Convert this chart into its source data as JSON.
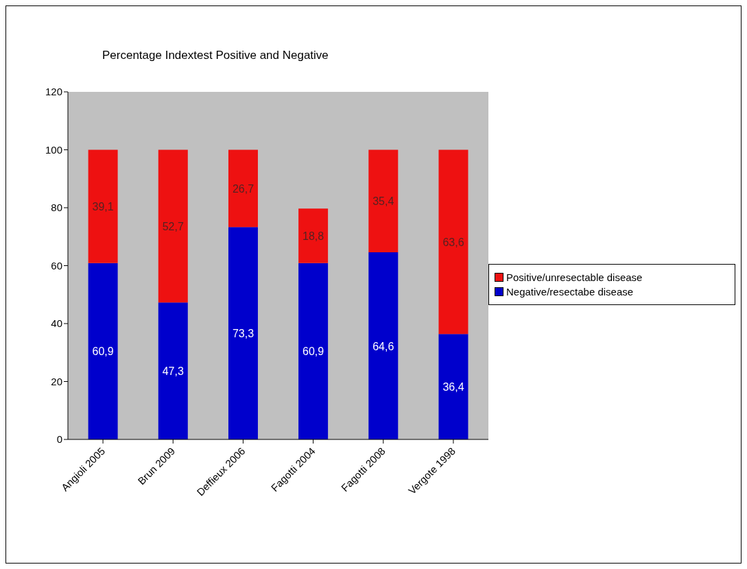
{
  "chart_data": {
    "type": "bar",
    "title": "Percentage Indextest Positive and Negative",
    "categories": [
      "Angioli 2005",
      "Brun 2009",
      "Deffieux 2006",
      "Fagotti 2004",
      "Fagotti 2008",
      "Vergote 1998"
    ],
    "stacked": true,
    "ylim": [
      0,
      120
    ],
    "yticks": [
      0,
      20,
      40,
      60,
      80,
      100,
      120
    ],
    "grid": false,
    "legend": "right",
    "series": [
      {
        "name": "Negative/resectabe disease",
        "color": "#0000cc",
        "values": [
          60.9,
          47.3,
          73.3,
          60.9,
          64.6,
          36.4
        ],
        "value_labels": [
          "60,9",
          "47,3",
          "73,3",
          "60,9",
          "64,6",
          "36,4"
        ]
      },
      {
        "name": "Positive/unresectable disease",
        "color": "#ee1111",
        "values": [
          39.1,
          52.7,
          26.7,
          18.8,
          35.4,
          63.6
        ],
        "value_labels": [
          "39,1",
          "52,7",
          "26,7",
          "18,8",
          "35,4",
          "63,6"
        ]
      }
    ]
  }
}
